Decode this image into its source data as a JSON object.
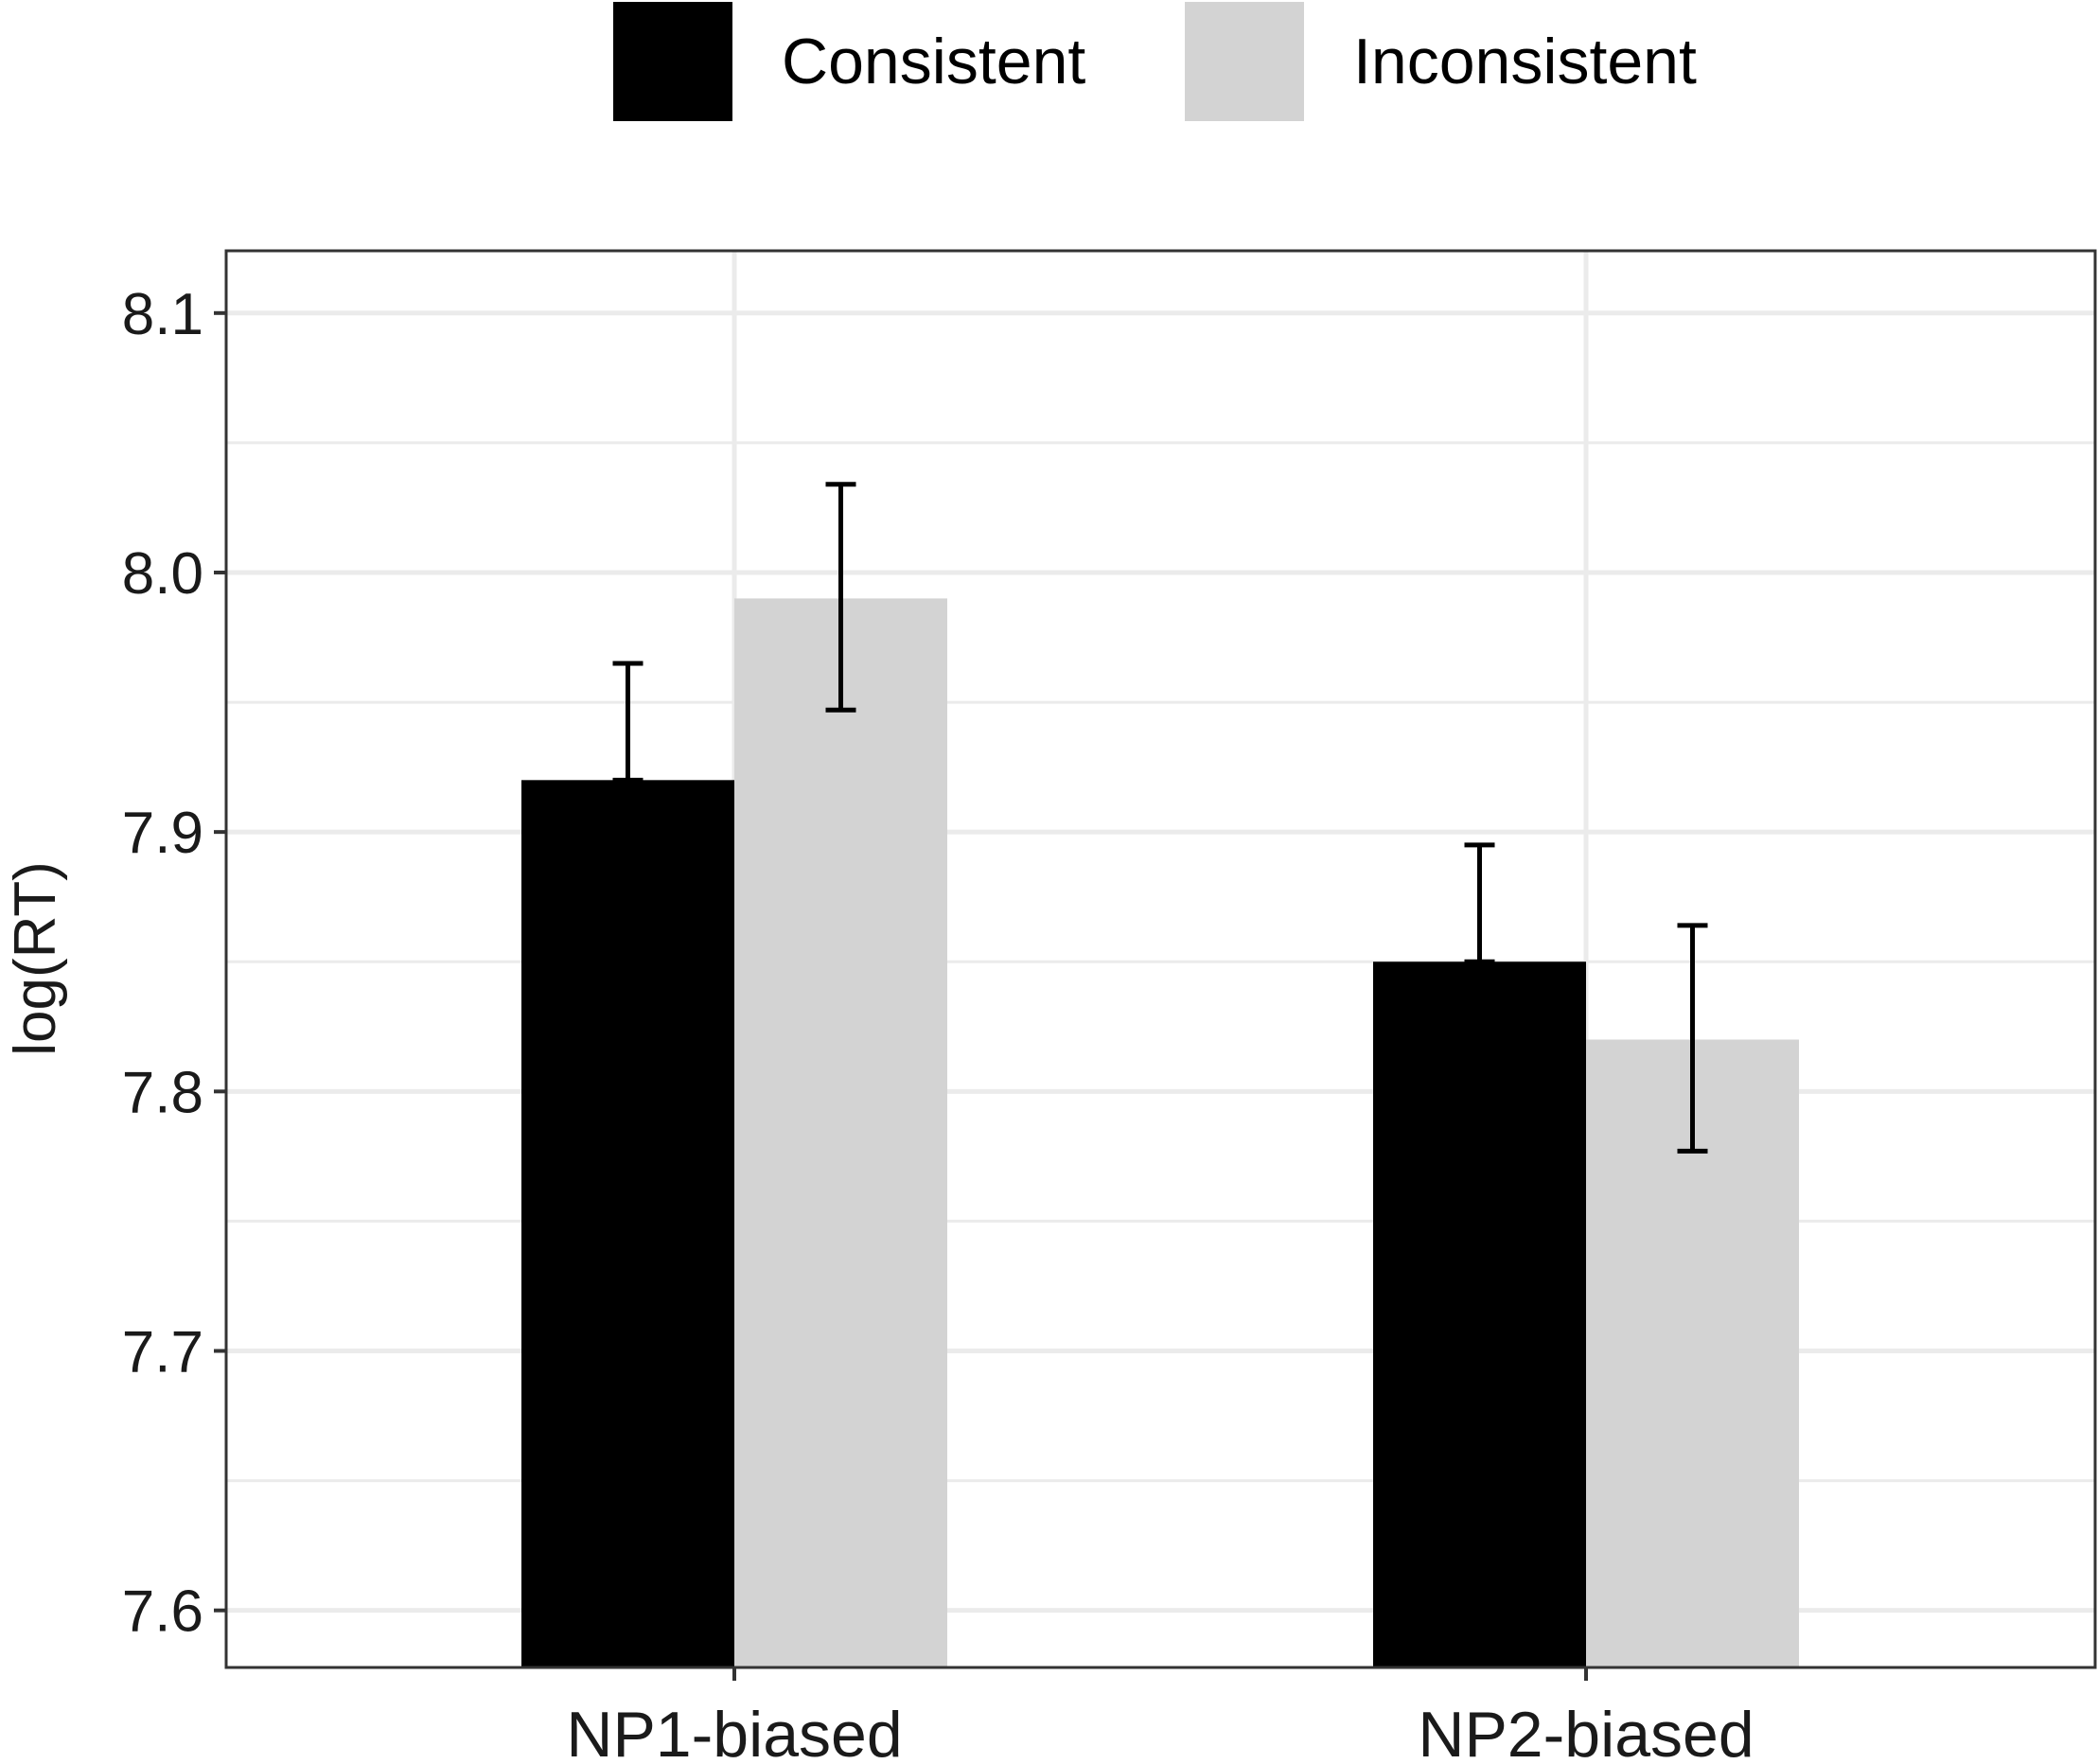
{
  "chart_data": {
    "type": "bar",
    "title": "",
    "xlabel": "",
    "ylabel": "log(RT)",
    "ylim": [
      7.578,
      8.124
    ],
    "y_ticks": [
      "7.6",
      "7.7",
      "7.8",
      "7.9",
      "8.0",
      "8.1"
    ],
    "y_tick_values": [
      7.6,
      7.7,
      7.8,
      7.9,
      8.0,
      8.1
    ],
    "categories": [
      "NP1-biased",
      "NP2-biased"
    ],
    "grid": true,
    "legend_position": "top",
    "series": [
      {
        "name": "Consistent",
        "color": "#000000",
        "values": [
          7.92,
          7.85
        ],
        "error_upper": [
          7.965,
          7.895
        ],
        "error_lower": [
          7.92,
          7.85
        ]
      },
      {
        "name": "Inconsistent",
        "color": "#d3d3d3",
        "values": [
          7.99,
          7.82
        ],
        "error_upper": [
          8.034,
          7.864
        ],
        "error_lower": [
          7.947,
          7.777
        ]
      }
    ]
  },
  "colors": {
    "panel_border": "#333333",
    "grid_major": "#ebebeb",
    "error_bar": "#000000"
  }
}
